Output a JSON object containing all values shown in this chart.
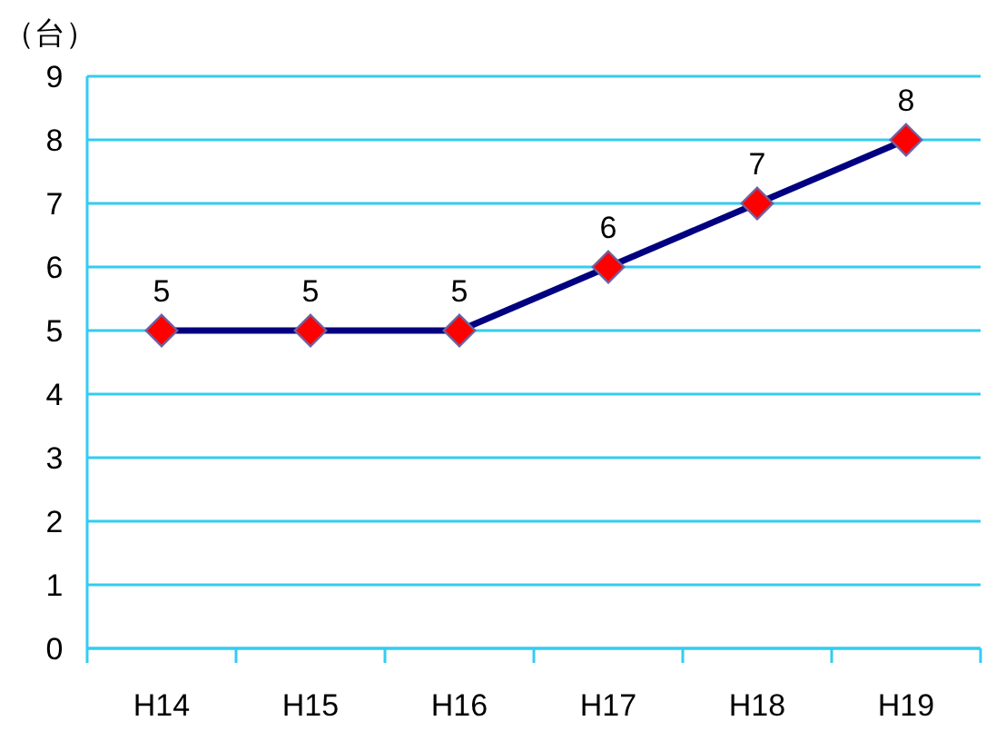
{
  "chart_data": {
    "type": "line",
    "ylabel": "（台）",
    "categories": [
      "H14",
      "H15",
      "H16",
      "H17",
      "H18",
      "H19"
    ],
    "series": [
      {
        "color": "#000080",
        "values": [
          5,
          5,
          5,
          6,
          7,
          8
        ]
      }
    ],
    "ylim": [
      0,
      9
    ],
    "yticks": [
      0,
      1,
      2,
      3,
      4,
      5,
      6,
      7,
      8,
      9
    ],
    "grid": "y",
    "marker": "diamond",
    "data_labels": true
  }
}
